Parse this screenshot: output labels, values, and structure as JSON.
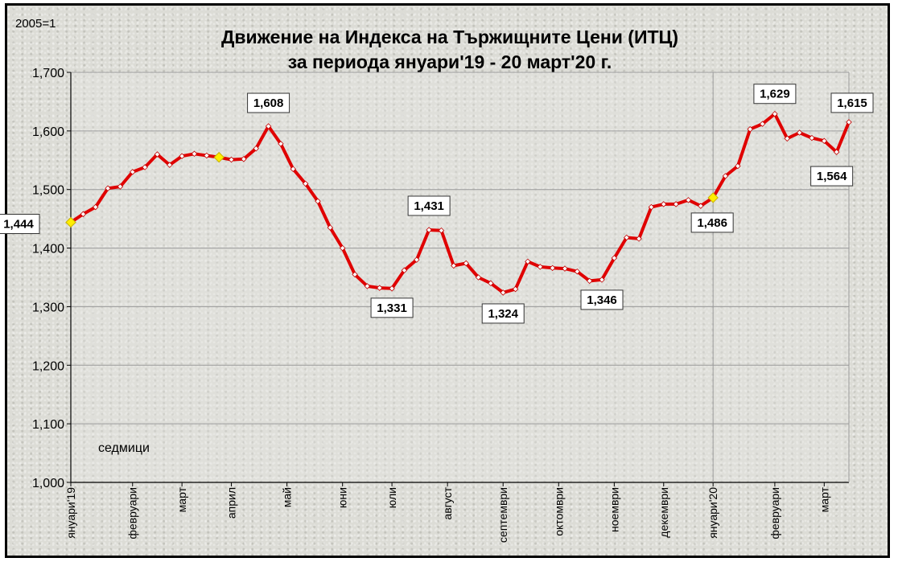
{
  "chart_data": {
    "type": "line",
    "title": "Движение на Индекса на Тържищните Цени (ИТЦ)",
    "subtitle": "за периода януари'19 - 20 март'20 г.",
    "base_note": "2005=1",
    "annotation": "седмици",
    "ylim": [
      1.0,
      1.7
    ],
    "yticks": [
      "1,000",
      "1,100",
      "1,200",
      "1,300",
      "1,400",
      "1,500",
      "1,600",
      "1,700"
    ],
    "grid": "horizontal",
    "x_month_labels": [
      {
        "label": "януари'19",
        "week": 0
      },
      {
        "label": "февруари",
        "week": 5
      },
      {
        "label": "март",
        "week": 9
      },
      {
        "label": "април",
        "week": 13
      },
      {
        "label": "май",
        "week": 17.5
      },
      {
        "label": "юни",
        "week": 22
      },
      {
        "label": "юли",
        "week": 26
      },
      {
        "label": "август",
        "week": 30.5
      },
      {
        "label": "септември",
        "week": 35
      },
      {
        "label": "октомври",
        "week": 39.5
      },
      {
        "label": "ноември",
        "week": 44
      },
      {
        "label": "декември",
        "week": 48
      },
      {
        "label": "януари'20",
        "week": 52
      },
      {
        "label": "февруари",
        "week": 57
      },
      {
        "label": "март",
        "week": 61
      }
    ],
    "series": [
      {
        "color": "#e00000",
        "values": [
          1.444,
          1.458,
          1.47,
          1.502,
          1.505,
          1.53,
          1.538,
          1.56,
          1.542,
          1.557,
          1.561,
          1.558,
          1.555,
          1.551,
          1.552,
          1.57,
          1.608,
          1.578,
          1.535,
          1.51,
          1.48,
          1.435,
          1.4,
          1.355,
          1.335,
          1.332,
          1.331,
          1.362,
          1.38,
          1.431,
          1.43,
          1.37,
          1.374,
          1.35,
          1.34,
          1.324,
          1.33,
          1.377,
          1.368,
          1.366,
          1.365,
          1.36,
          1.344,
          1.346,
          1.383,
          1.418,
          1.416,
          1.47,
          1.475,
          1.475,
          1.482,
          1.472,
          1.486,
          1.523,
          1.54,
          1.603,
          1.612,
          1.629,
          1.587,
          1.597,
          1.588,
          1.583,
          1.564,
          1.615
        ]
      }
    ],
    "highlighted_points": [
      0,
      12,
      52
    ],
    "data_labels": [
      {
        "index": 0,
        "text": "1,444"
      },
      {
        "index": 16,
        "text": "1,608"
      },
      {
        "index": 26,
        "text": "1,331"
      },
      {
        "index": 29,
        "text": "1,431"
      },
      {
        "index": 35,
        "text": "1,324"
      },
      {
        "index": 43,
        "text": "1,346"
      },
      {
        "index": 52,
        "text": "1,486"
      },
      {
        "index": 57,
        "text": "1,629"
      },
      {
        "index": 62,
        "text": "1,564"
      },
      {
        "index": 63,
        "text": "1,615"
      }
    ],
    "year_divider_week": 52
  }
}
